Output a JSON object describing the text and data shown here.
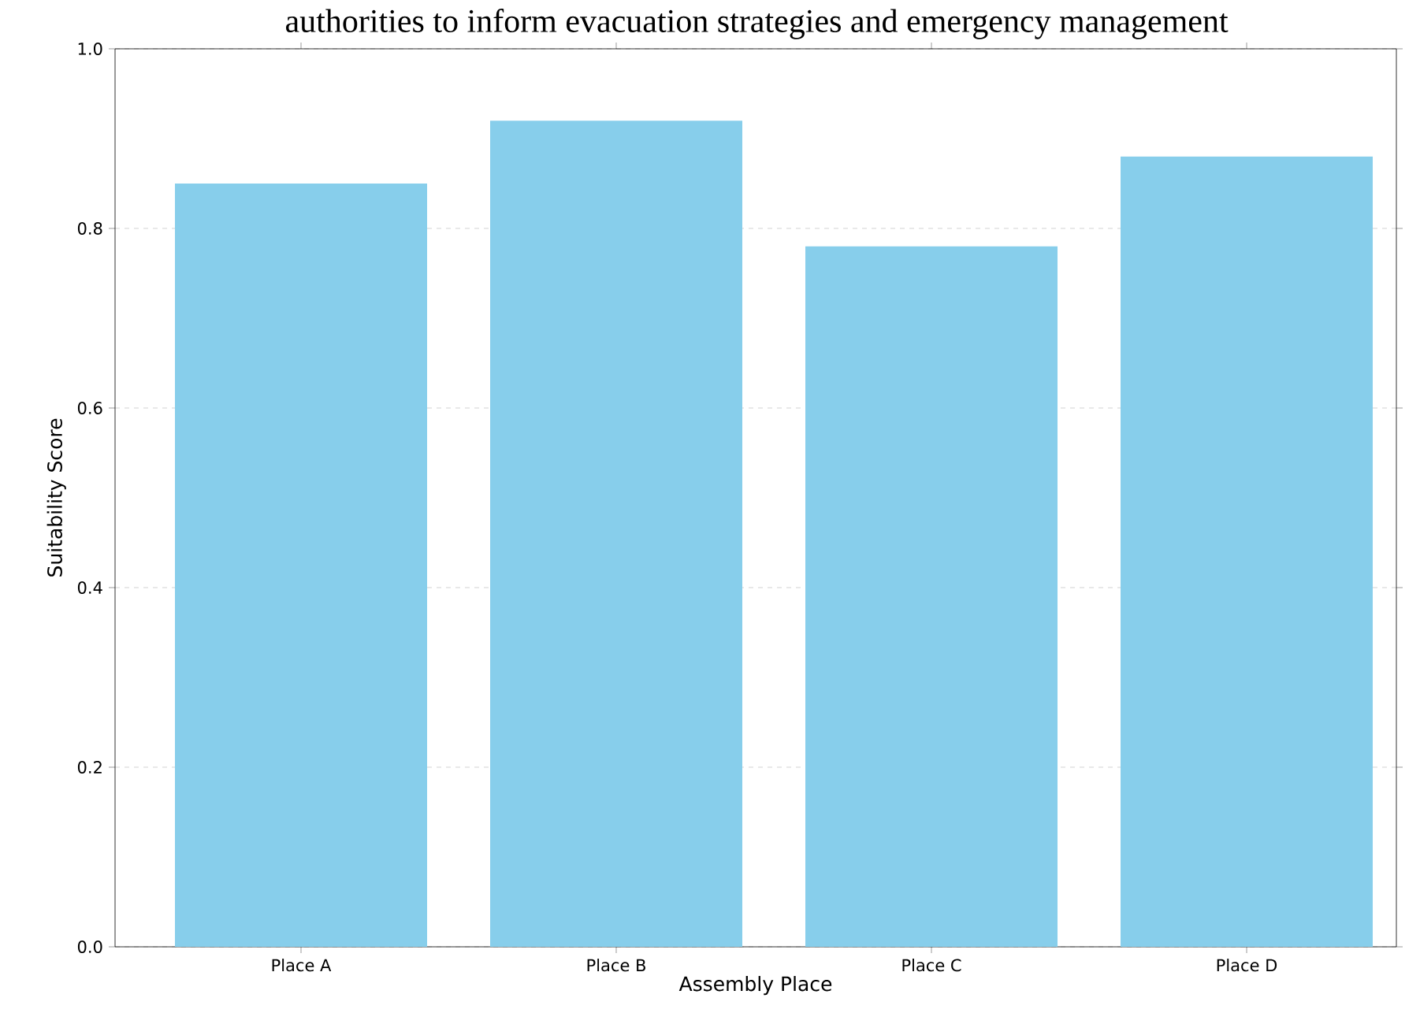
{
  "chart_data": {
    "type": "bar",
    "title": "authorities to inform evacuation strategies and emergency management",
    "xlabel": "Assembly Place",
    "ylabel": "Suitability Score",
    "categories": [
      "Place A",
      "Place B",
      "Place C",
      "Place D"
    ],
    "values": [
      0.85,
      0.92,
      0.78,
      0.88
    ],
    "color": "#87ceeb",
    "ylim": [
      0,
      1
    ],
    "yticks": [
      {
        "value": 0,
        "label": "0.0"
      },
      0.2,
      0.4,
      0.6,
      0.8,
      {
        "value": 1,
        "label": "1.0"
      }
    ],
    "grid": "y"
  }
}
